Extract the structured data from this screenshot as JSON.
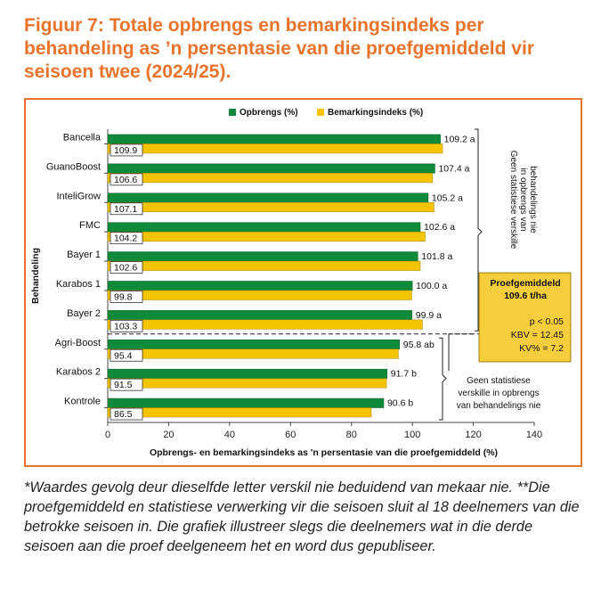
{
  "title": "Figuur 7: Totale opbrengs en bemarkingsindeks per behandeling as ’n persentasie van die proefgemiddeld vir seisoen twee (2024/25).",
  "footnote": "*Waardes gevolg deur dieselfde letter verskil nie beduidend van mekaar nie. **Die proefgemiddeld en statistiese verwerking vir die seisoen sluit al 18 deelnemers van die betrokke seisoen in. Die grafiek illustreer slegs die deelnemers wat in die derde seisoen aan die proef deelgeneem het en word dus gepubliseer.",
  "colors": {
    "opbrengs": "#0f8a3a",
    "bemarking": "#f5c400",
    "accent": "#e8732a",
    "box": "#f5cd3d"
  },
  "chart_data": {
    "type": "bar",
    "orientation": "horizontal",
    "categories": [
      "Bancella",
      "GuanoBoost",
      "InteliGrow",
      "FMC",
      "Bayer 1",
      "Karabos 1",
      "Bayer 2",
      "Agri-Boost",
      "Karabos 2",
      "Kontrole"
    ],
    "series": [
      {
        "name": "Opbrengs (%)",
        "values": [
          109.2,
          107.4,
          105.2,
          102.6,
          101.8,
          100.0,
          99.9,
          95.8,
          91.7,
          90.6
        ],
        "labels": [
          "109.2 a",
          "107.4 a",
          "105.2 a",
          "102.6 a",
          "101.8 a",
          "100.0 a",
          "99.9 a",
          "95.8 ab",
          "91.7 b",
          "90.6 b"
        ]
      },
      {
        "name": "Bemarkingsindeks (%)",
        "values": [
          109.9,
          106.6,
          107.1,
          104.2,
          102.6,
          99.8,
          103.3,
          95.4,
          91.5,
          86.5
        ],
        "labels": [
          "109.9",
          "106.6",
          "107.1",
          "104.2",
          "102.6",
          "99.8",
          "103.3",
          "95.4",
          "91.5",
          "86.5"
        ]
      }
    ],
    "xlabel": "Opbrengs- en bemarkingsindeks as 'n persentasie van die proefgemiddeld (%)",
    "ylabel": "Behandeling",
    "xlim": [
      0,
      140
    ],
    "xticks": [
      0,
      20,
      40,
      60,
      80,
      100,
      120,
      140
    ],
    "legend_position": "top",
    "annotations": {
      "group_top": "Geen statistiese verskille in opbrengs van behandelings nie",
      "group_bottom_lines": [
        "Geen statistiese",
        "verskille in opbrengs",
        "van behandelings nie"
      ],
      "box_title_lines": [
        "Proefgemiddeld",
        "109.6 t/ha"
      ],
      "box_stats": [
        "p < 0.05",
        "KBV = 12.45",
        "KV% = 7.2"
      ]
    }
  }
}
